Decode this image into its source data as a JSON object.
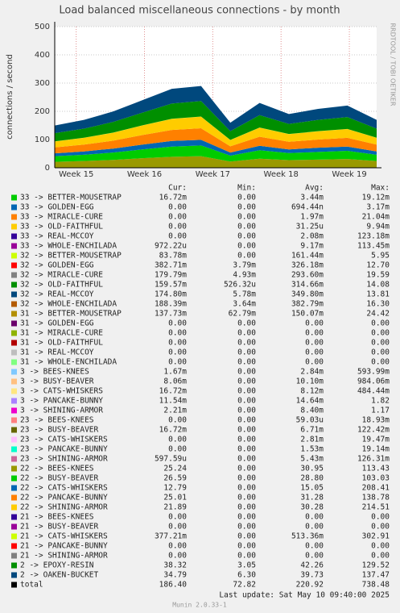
{
  "chart_data": {
    "type": "area",
    "stacked": true,
    "title": "Load balanced miscellaneous connections - by month",
    "y_label": "connections / second",
    "watermark": "RRDTOOL / TOBI OETIKER",
    "x": [
      0,
      3,
      6,
      9,
      12,
      15,
      18,
      21,
      24,
      27,
      30,
      33
    ],
    "xlim": [
      0,
      33
    ],
    "xticks": [
      {
        "value": 2.2,
        "label": "Week 15"
      },
      {
        "value": 9.2,
        "label": "Week 16"
      },
      {
        "value": 16.2,
        "label": "Week 17"
      },
      {
        "value": 23.2,
        "label": "Week 18"
      },
      {
        "value": 30.2,
        "label": "Week 19"
      }
    ],
    "ylim": [
      0,
      500
    ],
    "yticks": [
      0,
      100,
      200,
      300,
      400,
      500
    ],
    "grid": true,
    "stat_headers": [
      "Cur:",
      "Min:",
      "Avg:",
      "Max:"
    ],
    "series": [
      {
        "name": "33 -> BETTER-MOUSETRAP",
        "color": "#00CC00",
        "stats": [
          "16.72m",
          "0.00",
          "3.44m",
          "19.12m"
        ],
        "values": [
          0,
          0,
          0,
          0,
          0,
          0,
          0,
          0,
          0,
          0,
          0,
          0
        ]
      },
      {
        "name": "33 -> GOLDEN-EGG",
        "color": "#0066B3",
        "stats": [
          "0.00",
          "0.00",
          "694.44n",
          "3.17m"
        ],
        "values": [
          0,
          0,
          0,
          0,
          0,
          0,
          0,
          0,
          0,
          0,
          0,
          0
        ]
      },
      {
        "name": "33 -> MIRACLE-CURE",
        "color": "#FF8000",
        "stats": [
          "0.00",
          "0.00",
          "1.97m",
          "21.04m"
        ],
        "values": [
          0,
          0,
          0,
          0,
          0,
          0,
          0,
          0,
          0,
          0,
          0,
          0
        ]
      },
      {
        "name": "33 -> OLD-FAITHFUL",
        "color": "#FFCC00",
        "stats": [
          "0.00",
          "0.00",
          "31.25u",
          "9.94m"
        ],
        "values": [
          0,
          0,
          0,
          0,
          0,
          0,
          0,
          0,
          0,
          0,
          0,
          0
        ]
      },
      {
        "name": "33 -> REAL-MCCOY",
        "color": "#330099",
        "stats": [
          "0.00",
          "0.00",
          "2.08m",
          "123.18m"
        ],
        "values": [
          0,
          0,
          0,
          0,
          0,
          0,
          0,
          0,
          0,
          0,
          0,
          0
        ]
      },
      {
        "name": "33 -> WHOLE-ENCHILADA",
        "color": "#990099",
        "stats": [
          "972.22u",
          "0.00",
          "9.17m",
          "113.45m"
        ],
        "values": [
          0,
          0,
          0,
          0,
          0,
          0,
          0,
          0,
          0,
          0,
          0,
          0
        ]
      },
      {
        "name": "32 -> BETTER-MOUSETRAP",
        "color": "#CCFF00",
        "stats": [
          "83.78m",
          "0.00",
          "161.44m",
          "5.95"
        ],
        "values": [
          0,
          0,
          0,
          0,
          0,
          0,
          0,
          0,
          0,
          0,
          0,
          0
        ]
      },
      {
        "name": "32 -> GOLDEN-EGG",
        "color": "#FF0000",
        "stats": [
          "382.71m",
          "3.79m",
          "326.18m",
          "12.70"
        ],
        "values": [
          0,
          0,
          0,
          0,
          0,
          0,
          0,
          0,
          0,
          0,
          0,
          0
        ]
      },
      {
        "name": "32 -> MIRACLE-CURE",
        "color": "#808080",
        "stats": [
          "179.79m",
          "4.93m",
          "293.60m",
          "19.59"
        ],
        "values": [
          0,
          0,
          0,
          0,
          0,
          0,
          0,
          0,
          0,
          0,
          0,
          0
        ]
      },
      {
        "name": "32 -> OLD-FAITHFUL",
        "color": "#008F00",
        "stats": [
          "159.57m",
          "526.32u",
          "314.66m",
          "14.08"
        ],
        "values": [
          0,
          0,
          0,
          0,
          0,
          0,
          0,
          0,
          0,
          0,
          0,
          0
        ]
      },
      {
        "name": "32 -> REAL-MCCOY",
        "color": "#00487D",
        "stats": [
          "174.80m",
          "5.78m",
          "349.80m",
          "13.81"
        ],
        "values": [
          0,
          0,
          0,
          0,
          0,
          0,
          0,
          0,
          0,
          0,
          0,
          0
        ]
      },
      {
        "name": "32 -> WHOLE-ENCHILADA",
        "color": "#B35A00",
        "stats": [
          "188.39m",
          "3.64m",
          "382.79m",
          "16.30"
        ],
        "values": [
          0,
          0,
          0,
          0,
          0,
          0,
          0,
          0,
          0,
          0,
          0,
          0
        ]
      },
      {
        "name": "31 -> BETTER-MOUSETRAP",
        "color": "#B38F00",
        "stats": [
          "137.73m",
          "62.79m",
          "150.07m",
          "24.42"
        ],
        "values": [
          0,
          0,
          0,
          0,
          0,
          0,
          0,
          0,
          0,
          0,
          0,
          0
        ]
      },
      {
        "name": "31 -> GOLDEN-EGG",
        "color": "#6B006B",
        "stats": [
          "0.00",
          "0.00",
          "0.00",
          "0.00"
        ],
        "values": [
          0,
          0,
          0,
          0,
          0,
          0,
          0,
          0,
          0,
          0,
          0,
          0
        ]
      },
      {
        "name": "31 -> MIRACLE-CURE",
        "color": "#8FB300",
        "stats": [
          "0.00",
          "0.00",
          "0.00",
          "0.00"
        ],
        "values": [
          0,
          0,
          0,
          0,
          0,
          0,
          0,
          0,
          0,
          0,
          0,
          0
        ]
      },
      {
        "name": "31 -> OLD-FAITHFUL",
        "color": "#B30000",
        "stats": [
          "0.00",
          "0.00",
          "0.00",
          "0.00"
        ],
        "values": [
          0,
          0,
          0,
          0,
          0,
          0,
          0,
          0,
          0,
          0,
          0,
          0
        ]
      },
      {
        "name": "31 -> REAL-MCCOY",
        "color": "#BEBEBE",
        "stats": [
          "0.00",
          "0.00",
          "0.00",
          "0.00"
        ],
        "values": [
          0,
          0,
          0,
          0,
          0,
          0,
          0,
          0,
          0,
          0,
          0,
          0
        ]
      },
      {
        "name": "31 -> WHOLE-ENCHILADA",
        "color": "#80FF80",
        "stats": [
          "0.00",
          "0.00",
          "0.00",
          "0.00"
        ],
        "values": [
          0,
          0,
          0,
          0,
          0,
          0,
          0,
          0,
          0,
          0,
          0,
          0
        ]
      },
      {
        "name": "3 -> BEES-KNEES",
        "color": "#80C9FF",
        "stats": [
          "1.67m",
          "0.00",
          "2.84m",
          "593.99m"
        ],
        "values": [
          0,
          0,
          0,
          0,
          0,
          0,
          0,
          0,
          0,
          0,
          0,
          0
        ]
      },
      {
        "name": "3 -> BUSY-BEAVER",
        "color": "#FFC080",
        "stats": [
          "8.06m",
          "0.00",
          "10.10m",
          "984.06m"
        ],
        "values": [
          0,
          0,
          0,
          0,
          0,
          0,
          0,
          0,
          0,
          0,
          0,
          0
        ]
      },
      {
        "name": "3 -> CATS-WHISKERS",
        "color": "#FFE680",
        "stats": [
          "16.72m",
          "0.00",
          "8.12m",
          "484.44m"
        ],
        "values": [
          0,
          0,
          0,
          0,
          0,
          0,
          0,
          0,
          0,
          0,
          0,
          0
        ]
      },
      {
        "name": "3 -> PANCAKE-BUNNY",
        "color": "#AA80FF",
        "stats": [
          "11.54m",
          "0.00",
          "14.64m",
          "1.82"
        ],
        "values": [
          0,
          0,
          0,
          0,
          0,
          0,
          0,
          0,
          0,
          0,
          0,
          0
        ]
      },
      {
        "name": "3 -> SHINING-ARMOR",
        "color": "#EE00CC",
        "stats": [
          "2.21m",
          "0.00",
          "8.40m",
          "1.17"
        ],
        "values": [
          0,
          0,
          0,
          0,
          0,
          0,
          0,
          0,
          0,
          0,
          0,
          0
        ]
      },
      {
        "name": "23 -> BEES-KNEES",
        "color": "#FF8080",
        "stats": [
          "0.00",
          "0.00",
          "59.03u",
          "18.93m"
        ],
        "values": [
          0,
          0,
          0,
          0,
          0,
          0,
          0,
          0,
          0,
          0,
          0,
          0
        ]
      },
      {
        "name": "23 -> BUSY-BEAVER",
        "color": "#666600",
        "stats": [
          "16.72m",
          "0.00",
          "6.71m",
          "122.42m"
        ],
        "values": [
          0,
          0,
          0,
          0,
          0,
          0,
          0,
          0,
          0,
          0,
          0,
          0
        ]
      },
      {
        "name": "23 -> CATS-WHISKERS",
        "color": "#FFBFFF",
        "stats": [
          "0.00",
          "0.00",
          "2.81m",
          "19.47m"
        ],
        "values": [
          0,
          0,
          0,
          0,
          0,
          0,
          0,
          0,
          0,
          0,
          0,
          0
        ]
      },
      {
        "name": "23 -> PANCAKE-BUNNY",
        "color": "#00FFCC",
        "stats": [
          "0.00",
          "0.00",
          "1.53m",
          "19.14m"
        ],
        "values": [
          0,
          0,
          0,
          0,
          0,
          0,
          0,
          0,
          0,
          0,
          0,
          0
        ]
      },
      {
        "name": "23 -> SHINING-ARMOR",
        "color": "#CC6699",
        "stats": [
          "597.59u",
          "0.00",
          "5.43m",
          "126.31m"
        ],
        "values": [
          0,
          0,
          0,
          0,
          0,
          0,
          0,
          0,
          0,
          0,
          0,
          0
        ]
      },
      {
        "name": "22 -> BEES-KNEES",
        "color": "#999900",
        "stats": [
          "25.24",
          "0.00",
          "30.95",
          "113.43"
        ],
        "values": [
          21,
          24,
          28,
          34,
          39,
          41,
          22,
          32,
          27,
          29,
          31,
          24
        ]
      },
      {
        "name": "22 -> BUSY-BEAVER",
        "color": "#00CC00",
        "stats": [
          "26.59",
          "0.00",
          "28.80",
          "103.03"
        ],
        "values": [
          20,
          22,
          26,
          31,
          36,
          38,
          21,
          30,
          25,
          27,
          29,
          22
        ]
      },
      {
        "name": "22 -> CATS-WHISKERS",
        "color": "#0066B3",
        "stats": [
          "12.79",
          "0.00",
          "15.05",
          "208.41"
        ],
        "values": [
          10,
          12,
          14,
          17,
          20,
          20,
          11,
          16,
          13,
          15,
          15,
          12
        ]
      },
      {
        "name": "22 -> PANCAKE-BUNNY",
        "color": "#FF8000",
        "stats": [
          "25.01",
          "0.00",
          "31.28",
          "138.78"
        ],
        "values": [
          21,
          24,
          28,
          34,
          39,
          41,
          22,
          32,
          27,
          29,
          31,
          24
        ]
      },
      {
        "name": "22 -> SHINING-ARMOR",
        "color": "#FFCC00",
        "stats": [
          "21.89",
          "0.00",
          "30.28",
          "214.51"
        ],
        "values": [
          21,
          24,
          28,
          34,
          39,
          41,
          22,
          32,
          27,
          29,
          31,
          24
        ]
      },
      {
        "name": "21 -> BEES-KNEES",
        "color": "#330099",
        "stats": [
          "0.00",
          "0.00",
          "0.00",
          "0.00"
        ],
        "values": [
          0,
          0,
          0,
          0,
          0,
          0,
          0,
          0,
          0,
          0,
          0,
          0
        ]
      },
      {
        "name": "21 -> BUSY-BEAVER",
        "color": "#990099",
        "stats": [
          "0.00",
          "0.00",
          "0.00",
          "0.00"
        ],
        "values": [
          0,
          0,
          0,
          0,
          0,
          0,
          0,
          0,
          0,
          0,
          0,
          0
        ]
      },
      {
        "name": "21 -> CATS-WHISKERS",
        "color": "#CCFF00",
        "stats": [
          "377.21m",
          "0.00",
          "513.36m",
          "302.91"
        ],
        "values": [
          0.5,
          0.5,
          0.5,
          0.5,
          0.5,
          0.5,
          0.5,
          0.5,
          0.5,
          0.5,
          0.5,
          0.5
        ]
      },
      {
        "name": "21 -> PANCAKE-BUNNY",
        "color": "#FF0000",
        "stats": [
          "0.00",
          "0.00",
          "0.00",
          "0.00"
        ],
        "values": [
          0,
          0,
          0,
          0,
          0,
          0,
          0,
          0,
          0,
          0,
          0,
          0
        ]
      },
      {
        "name": "21 -> SHINING-ARMOR",
        "color": "#808080",
        "stats": [
          "0.00",
          "0.00",
          "0.00",
          "0.00"
        ],
        "values": [
          0,
          0,
          0,
          0,
          0,
          0,
          0,
          0,
          0,
          0,
          0,
          0
        ]
      },
      {
        "name": "2 -> EPOXY-RESIN",
        "color": "#008F00",
        "stats": [
          "38.32",
          "3.05",
          "42.26",
          "129.52"
        ],
        "values": [
          29,
          32,
          38,
          45,
          54,
          55,
          31,
          44,
          36,
          40,
          42,
          32
        ]
      },
      {
        "name": "2 -> OAKEN-BUCKET",
        "color": "#00487D",
        "stats": [
          "34.79",
          "6.30",
          "39.73",
          "137.47"
        ],
        "values": [
          27,
          31,
          37,
          44,
          52,
          53,
          30,
          43,
          35,
          39,
          41,
          31
        ]
      }
    ],
    "total": {
      "name": "total",
      "color": "#000000",
      "stats": [
        "186.40",
        "72.82",
        "220.92",
        "738.48"
      ]
    },
    "last_update": "Last update:  Sat May 10 09:40:00 2025",
    "version": "Munin 2.0.33-1"
  }
}
